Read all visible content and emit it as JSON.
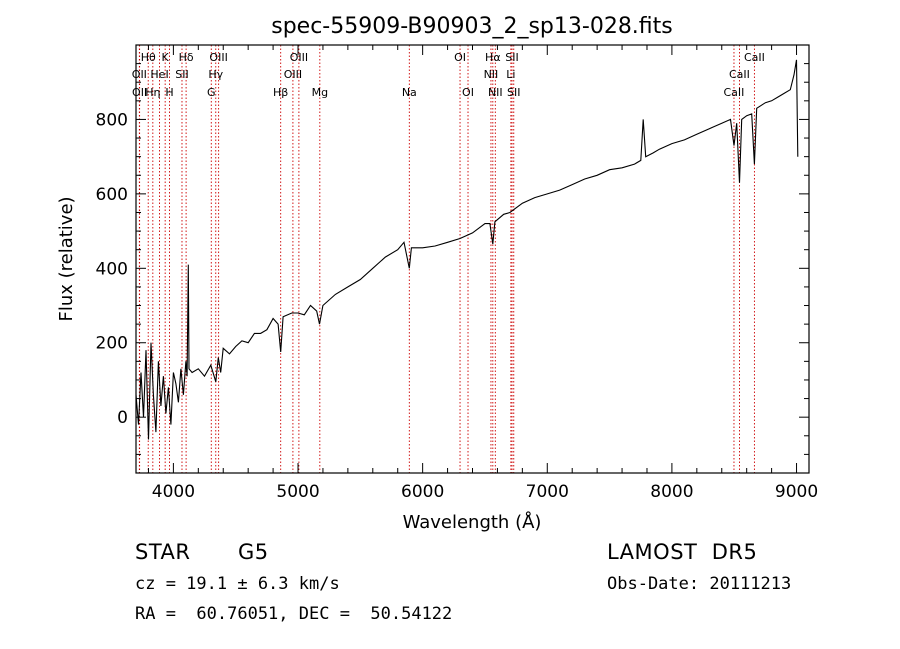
{
  "chart_data": {
    "type": "line",
    "title": "spec-55909-B90903_2_sp13-028.fits",
    "xlabel": "Wavelength (Å)",
    "ylabel": "Flux (relative)",
    "xlim": [
      3700,
      9100
    ],
    "ylim": [
      -150,
      1000
    ],
    "xticks": [
      4000,
      5000,
      6000,
      7000,
      8000,
      9000
    ],
    "yticks": [
      0,
      200,
      400,
      600,
      800
    ],
    "grid": false,
    "series": [
      {
        "color": "#000000",
        "points": [
          [
            3700,
            60
          ],
          [
            3720,
            -20
          ],
          [
            3740,
            120
          ],
          [
            3760,
            0
          ],
          [
            3780,
            180
          ],
          [
            3800,
            -60
          ],
          [
            3820,
            200
          ],
          [
            3840,
            60
          ],
          [
            3860,
            -40
          ],
          [
            3880,
            150
          ],
          [
            3900,
            30
          ],
          [
            3920,
            110
          ],
          [
            3940,
            10
          ],
          [
            3960,
            80
          ],
          [
            3980,
            -20
          ],
          [
            4000,
            120
          ],
          [
            4020,
            90
          ],
          [
            4040,
            40
          ],
          [
            4060,
            130
          ],
          [
            4080,
            60
          ],
          [
            4100,
            150
          ],
          [
            4110,
            110
          ],
          [
            4120,
            410
          ],
          [
            4125,
            130
          ],
          [
            4150,
            120
          ],
          [
            4200,
            130
          ],
          [
            4250,
            110
          ],
          [
            4300,
            140
          ],
          [
            4340,
            95
          ],
          [
            4360,
            160
          ],
          [
            4380,
            120
          ],
          [
            4400,
            185
          ],
          [
            4450,
            170
          ],
          [
            4500,
            190
          ],
          [
            4550,
            205
          ],
          [
            4600,
            200
          ],
          [
            4650,
            225
          ],
          [
            4700,
            225
          ],
          [
            4750,
            235
          ],
          [
            4800,
            265
          ],
          [
            4840,
            250
          ],
          [
            4861,
            175
          ],
          [
            4880,
            270
          ],
          [
            4950,
            280
          ],
          [
            5000,
            280
          ],
          [
            5050,
            275
          ],
          [
            5100,
            300
          ],
          [
            5150,
            285
          ],
          [
            5172,
            250
          ],
          [
            5200,
            300
          ],
          [
            5300,
            330
          ],
          [
            5400,
            350
          ],
          [
            5500,
            370
          ],
          [
            5600,
            400
          ],
          [
            5700,
            430
          ],
          [
            5800,
            450
          ],
          [
            5850,
            470
          ],
          [
            5893,
            400
          ],
          [
            5910,
            455
          ],
          [
            6000,
            455
          ],
          [
            6100,
            460
          ],
          [
            6200,
            470
          ],
          [
            6300,
            480
          ],
          [
            6400,
            495
          ],
          [
            6500,
            520
          ],
          [
            6540,
            520
          ],
          [
            6563,
            465
          ],
          [
            6580,
            525
          ],
          [
            6650,
            545
          ],
          [
            6700,
            550
          ],
          [
            6800,
            575
          ],
          [
            6900,
            590
          ],
          [
            7000,
            600
          ],
          [
            7100,
            610
          ],
          [
            7200,
            625
          ],
          [
            7300,
            640
          ],
          [
            7400,
            650
          ],
          [
            7500,
            665
          ],
          [
            7600,
            670
          ],
          [
            7700,
            680
          ],
          [
            7750,
            690
          ],
          [
            7770,
            800
          ],
          [
            7790,
            700
          ],
          [
            7850,
            710
          ],
          [
            7900,
            720
          ],
          [
            8000,
            735
          ],
          [
            8100,
            745
          ],
          [
            8200,
            760
          ],
          [
            8300,
            775
          ],
          [
            8400,
            790
          ],
          [
            8470,
            800
          ],
          [
            8498,
            730
          ],
          [
            8520,
            790
          ],
          [
            8542,
            630
          ],
          [
            8560,
            800
          ],
          [
            8600,
            810
          ],
          [
            8640,
            815
          ],
          [
            8662,
            680
          ],
          [
            8680,
            830
          ],
          [
            8750,
            845
          ],
          [
            8800,
            850
          ],
          [
            8850,
            860
          ],
          [
            8900,
            870
          ],
          [
            8950,
            880
          ],
          [
            8980,
            920
          ],
          [
            9000,
            960
          ],
          [
            9010,
            700
          ]
        ]
      }
    ],
    "line_markers": [
      {
        "label": "Hθ",
        "x": 3798,
        "row": 0
      },
      {
        "label": "K",
        "x": 3934,
        "row": 0
      },
      {
        "label": "Hδ",
        "x": 4102,
        "row": 0
      },
      {
        "label": "OIII",
        "x": 4363,
        "row": 0
      },
      {
        "label": "OIII",
        "x": 5007,
        "row": 0
      },
      {
        "label": "OI",
        "x": 6300,
        "row": 0
      },
      {
        "label": "Hα",
        "x": 6563,
        "row": 0
      },
      {
        "label": "SII",
        "x": 6717,
        "row": 0
      },
      {
        "label": "CaII",
        "x": 8662,
        "row": 0
      },
      {
        "label": "OII",
        "x": 3727,
        "row": 1
      },
      {
        "label": "HeI",
        "x": 3889,
        "row": 1
      },
      {
        "label": "SII",
        "x": 4069,
        "row": 1
      },
      {
        "label": "Hγ",
        "x": 4340,
        "row": 1
      },
      {
        "label": "OIII",
        "x": 4959,
        "row": 1
      },
      {
        "label": "NII",
        "x": 6548,
        "row": 1
      },
      {
        "label": "Li",
        "x": 6708,
        "row": 1
      },
      {
        "label": "CaII",
        "x": 8542,
        "row": 1
      },
      {
        "label": "OII",
        "x": 3729,
        "row": 2
      },
      {
        "label": "Hη",
        "x": 3835,
        "row": 2
      },
      {
        "label": "H",
        "x": 3969,
        "row": 2
      },
      {
        "label": "G",
        "x": 4304,
        "row": 2
      },
      {
        "label": "Hβ",
        "x": 4861,
        "row": 2
      },
      {
        "label": "Mg",
        "x": 5175,
        "row": 2
      },
      {
        "label": "Na",
        "x": 5893,
        "row": 2
      },
      {
        "label": "OI",
        "x": 6364,
        "row": 2
      },
      {
        "label": "NII",
        "x": 6583,
        "row": 2
      },
      {
        "label": "SII",
        "x": 6731,
        "row": 2
      },
      {
        "label": "CaII",
        "x": 8498,
        "row": 2
      }
    ],
    "marker_color": "#cc0000"
  },
  "info": {
    "object_class": "STAR",
    "subclass": "G5",
    "survey": "LAMOST  DR5",
    "cz": "cz = 19.1 ± 6.3 km/s",
    "obs_date": "Obs-Date: 20111213",
    "coords": "RA =  60.76051, DEC =  50.54122"
  }
}
